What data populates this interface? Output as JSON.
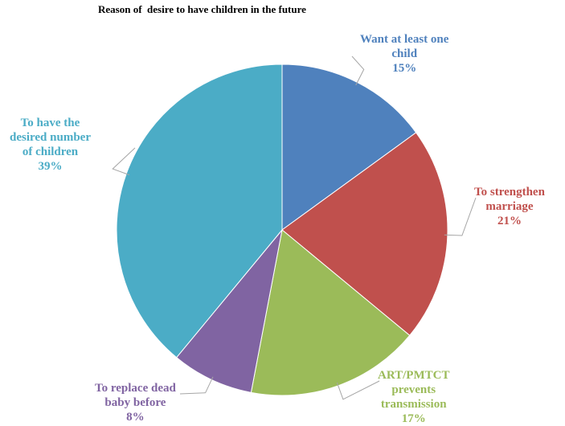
{
  "chart_data": {
    "type": "pie",
    "title": "Reason of  desire to have children in the future",
    "slices": [
      {
        "label": [
          "Want at least one",
          "child"
        ],
        "value": 15,
        "value_label": "15%",
        "color": "#4f81bd"
      },
      {
        "label": [
          "To strengthen",
          "marriage"
        ],
        "value": 21,
        "value_label": "21%",
        "color": "#c0504d"
      },
      {
        "label": [
          "ART/PMTCT",
          "prevents",
          "transmission"
        ],
        "value": 17,
        "value_label": "17%",
        "color": "#9bbb59"
      },
      {
        "label": [
          "To replace dead",
          "baby before"
        ],
        "value": 8,
        "value_label": "8%",
        "color": "#8064a2"
      },
      {
        "label": [
          "To have the",
          "desired number",
          "of children"
        ],
        "value": 39,
        "value_label": "39%",
        "color": "#4bacc6"
      }
    ],
    "legend": "none",
    "label_position": "outside-with-leader-lines"
  }
}
